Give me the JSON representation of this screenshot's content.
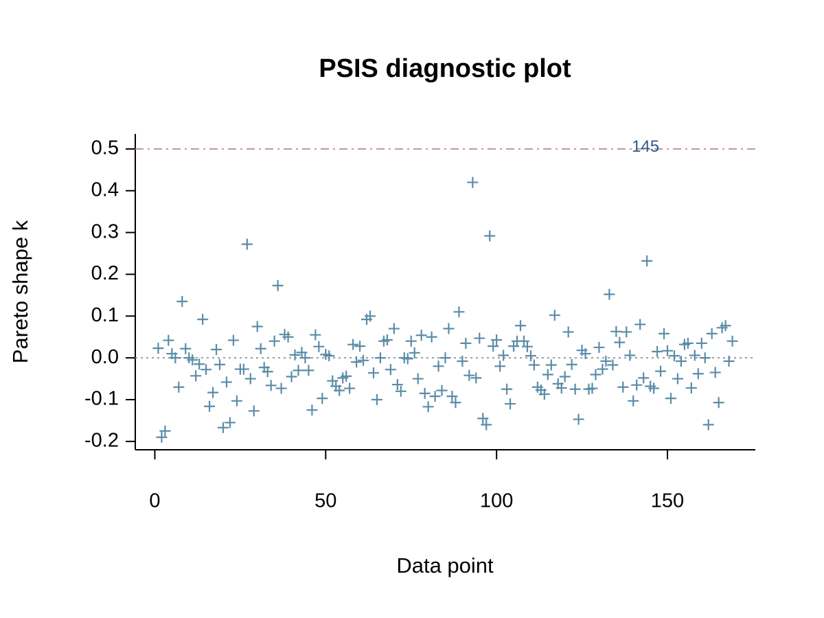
{
  "chart_data": {
    "type": "scatter",
    "title": "PSIS diagnostic plot",
    "xlabel": "Data point",
    "ylabel": "Pareto shape k",
    "color": "#5a8ca8",
    "x": [
      1,
      2,
      3,
      4,
      5,
      6,
      7,
      8,
      9,
      10,
      11,
      12,
      13,
      14,
      15,
      16,
      17,
      18,
      19,
      20,
      21,
      22,
      23,
      24,
      25,
      26,
      27,
      28,
      29,
      30,
      31,
      32,
      33,
      34,
      35,
      36,
      37,
      38,
      39,
      40,
      41,
      42,
      43,
      44,
      45,
      46,
      47,
      48,
      49,
      50,
      51,
      52,
      53,
      54,
      55,
      56,
      57,
      58,
      59,
      60,
      61,
      62,
      63,
      64,
      65,
      66,
      67,
      68,
      69,
      70,
      71,
      72,
      73,
      74,
      75,
      76,
      77,
      78,
      79,
      80,
      81,
      82,
      83,
      84,
      85,
      86,
      87,
      88,
      89,
      90,
      91,
      92,
      93,
      94,
      95,
      96,
      97,
      98,
      99,
      100,
      101,
      102,
      103,
      104,
      105,
      106,
      107,
      108,
      109,
      110,
      111,
      112,
      113,
      114,
      115,
      116,
      117,
      118,
      119,
      120,
      121,
      122,
      123,
      124,
      125,
      126,
      127,
      128,
      129,
      130,
      131,
      132,
      133,
      134,
      135,
      136,
      137,
      138,
      139,
      140,
      141,
      142,
      143,
      144,
      145,
      146,
      147,
      148,
      149,
      150,
      151,
      152,
      153,
      154,
      155,
      156,
      157,
      158,
      159,
      160,
      161,
      162,
      163,
      164,
      165,
      166,
      167,
      168,
      169
    ],
    "values": [
      0.023,
      -0.19,
      -0.175,
      0.042,
      0.01,
      0.0,
      -0.07,
      0.135,
      0.022,
      0.0,
      -0.005,
      -0.043,
      -0.015,
      0.092,
      -0.028,
      -0.116,
      -0.083,
      0.02,
      -0.016,
      -0.167,
      -0.058,
      -0.155,
      0.042,
      -0.103,
      -0.027,
      -0.027,
      0.272,
      -0.05,
      -0.127,
      0.075,
      0.022,
      -0.023,
      -0.033,
      -0.066,
      0.04,
      0.173,
      -0.073,
      0.056,
      0.05,
      -0.045,
      0.007,
      -0.03,
      0.013,
      0.0,
      -0.03,
      -0.125,
      0.055,
      0.027,
      -0.097,
      0.008,
      0.005,
      -0.055,
      -0.068,
      -0.078,
      -0.048,
      -0.044,
      -0.073,
      0.032,
      -0.01,
      0.028,
      -0.006,
      0.092,
      0.1,
      -0.036,
      -0.1,
      0.0,
      0.04,
      0.043,
      -0.028,
      0.07,
      -0.064,
      -0.08,
      0.0,
      -0.002,
      0.04,
      0.012,
      -0.05,
      0.054,
      -0.085,
      -0.117,
      0.05,
      -0.092,
      -0.02,
      -0.078,
      0.0,
      0.07,
      -0.092,
      -0.107,
      0.11,
      -0.008,
      0.035,
      -0.042,
      0.42,
      -0.048,
      0.047,
      -0.145,
      -0.16,
      0.292,
      0.028,
      0.043,
      -0.02,
      0.006,
      -0.075,
      -0.11,
      0.028,
      0.04,
      0.077,
      0.04,
      0.027,
      0.005,
      -0.017,
      -0.07,
      -0.077,
      -0.087,
      -0.04,
      -0.017,
      0.102,
      -0.062,
      -0.072,
      -0.045,
      0.062,
      -0.016,
      -0.075,
      -0.147,
      0.018,
      0.01,
      -0.075,
      -0.073,
      -0.04,
      0.025,
      -0.027,
      -0.008,
      0.152,
      -0.017,
      0.063,
      0.037,
      -0.07,
      0.062,
      0.006,
      -0.103,
      -0.065,
      0.08,
      -0.048,
      0.232,
      -0.068,
      -0.073,
      0.015,
      -0.032,
      0.058,
      0.017,
      -0.097,
      0.005,
      -0.05,
      -0.008,
      0.032,
      0.035,
      -0.072,
      0.006,
      -0.038,
      0.035,
      0.0,
      -0.16,
      0.058,
      -0.035,
      -0.107,
      0.072,
      0.077,
      -0.008,
      0.04
    ],
    "xlim": [
      -5.72,
      175.72
    ],
    "xticks": [
      0,
      50,
      100,
      150
    ],
    "ylim": [
      -0.22,
      0.536
    ],
    "yticks": [
      -0.2,
      -0.1,
      {
        "value": 0,
        "label": "0.0"
      },
      0.1,
      0.2,
      0.3,
      0.4,
      0.5
    ],
    "hlines": [
      {
        "value": 0.5,
        "color": "#c09494",
        "style": "dashdot"
      },
      {
        "value": 0,
        "color": "#999999",
        "style": "dotted"
      }
    ],
    "annotations": [
      {
        "text": "145",
        "x": 145,
        "y": 0.5,
        "color": "#2a5a8c"
      }
    ]
  }
}
